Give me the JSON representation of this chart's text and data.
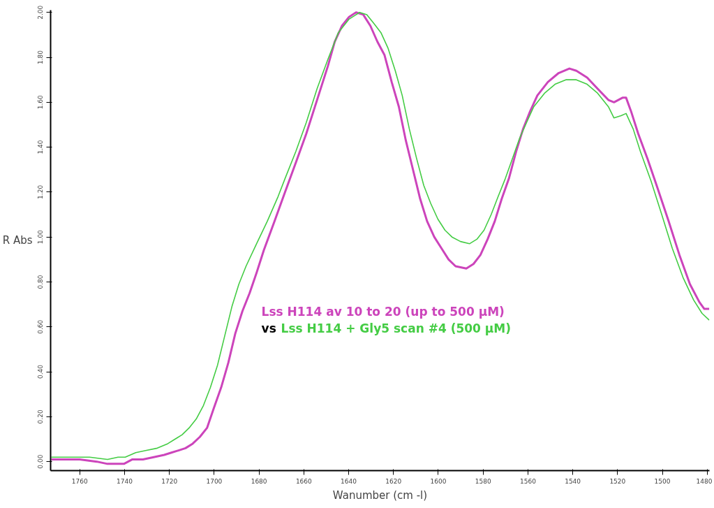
{
  "chart_data": {
    "type": "line",
    "xlabel": "Wanumber (cm -l)",
    "ylabel": "R Abs",
    "xlim": [
      1773,
      1479
    ],
    "ylim": [
      -0.04,
      2.01
    ],
    "xticks": [
      1760,
      1740,
      1720,
      1700,
      1680,
      1660,
      1640,
      1620,
      1600,
      1580,
      1560,
      1540,
      1520,
      1500,
      1480
    ],
    "yticks": [
      {
        "value": 0,
        "label": "0.00"
      },
      {
        "value": 0.2,
        "label": "0.20"
      },
      {
        "value": 0.4,
        "label": "0.40"
      },
      {
        "value": 0.6,
        "label": "0.60"
      },
      {
        "value": 0.8,
        "label": "0.80"
      },
      {
        "value": 1.0,
        "label": "1.00"
      },
      {
        "value": 1.2,
        "label": "1.20"
      },
      {
        "value": 1.4,
        "label": "1.40"
      },
      {
        "value": 1.6,
        "label": "1.60"
      },
      {
        "value": 1.8,
        "label": "1.80"
      },
      {
        "value": 2.0,
        "label": "2.00"
      }
    ],
    "grid": false,
    "legend": "bottom",
    "annotations": [
      "vs"
    ],
    "series": [
      {
        "name": "Lss H114 av 10 to 20 (up to 500 µM)",
        "color": "#cc44bb",
        "x": [
          1772.7,
          1768.2,
          1760,
          1752.4,
          1747.6,
          1742.9,
          1740.3,
          1736.5,
          1731.8,
          1727,
          1722.3,
          1719.1,
          1715.9,
          1712.8,
          1709.6,
          1706.4,
          1703.2,
          1700.1,
          1696.9,
          1693.7,
          1690.6,
          1687.4,
          1684.2,
          1681.1,
          1677.9,
          1673.1,
          1668.4,
          1663.6,
          1658.9,
          1654.1,
          1649.3,
          1646.2,
          1643,
          1639.8,
          1636.7,
          1633.5,
          1630.3,
          1627.2,
          1624,
          1620.8,
          1617.6,
          1614.5,
          1611.3,
          1608.1,
          1605,
          1601.8,
          1598.6,
          1595.4,
          1592.3,
          1587.5,
          1584.3,
          1581.2,
          1578,
          1574.8,
          1571.7,
          1568.5,
          1565.3,
          1562.2,
          1559,
          1555.8,
          1551.1,
          1546.3,
          1541.5,
          1538.4,
          1533.6,
          1528.9,
          1524.1,
          1521.6,
          1517.8,
          1516.2,
          1514,
          1510.8,
          1506.7,
          1501.9,
          1497.2,
          1492.4,
          1487.7,
          1483.5,
          1481.3,
          1479.1
        ],
        "values": [
          0.01,
          0.01,
          0.01,
          0,
          -0.01,
          -0.01,
          -0.01,
          0.01,
          0.01,
          0.02,
          0.03,
          0.04,
          0.05,
          0.06,
          0.08,
          0.11,
          0.15,
          0.24,
          0.33,
          0.44,
          0.57,
          0.67,
          0.75,
          0.84,
          0.94,
          1.07,
          1.2,
          1.33,
          1.46,
          1.61,
          1.76,
          1.87,
          1.94,
          1.98,
          2.0,
          1.99,
          1.94,
          1.87,
          1.81,
          1.69,
          1.58,
          1.43,
          1.3,
          1.17,
          1.07,
          1.0,
          0.95,
          0.9,
          0.87,
          0.86,
          0.88,
          0.92,
          0.99,
          1.07,
          1.17,
          1.26,
          1.38,
          1.48,
          1.56,
          1.63,
          1.69,
          1.73,
          1.75,
          1.74,
          1.71,
          1.66,
          1.61,
          1.6,
          1.62,
          1.62,
          1.56,
          1.46,
          1.35,
          1.21,
          1.07,
          0.92,
          0.79,
          0.71,
          0.68,
          0.68
        ]
      },
      {
        "name": "Lss H114 + Gly5 scan #4 (500 µM)",
        "color": "#44cc44",
        "x": [
          1772.7,
          1768.2,
          1761.9,
          1755.6,
          1747.6,
          1742.9,
          1739.7,
          1735,
          1730.2,
          1725.4,
          1720.7,
          1717.5,
          1714.3,
          1711.2,
          1708,
          1704.8,
          1701.7,
          1698.5,
          1695.3,
          1692.1,
          1689,
          1685.8,
          1681.1,
          1676.3,
          1671.5,
          1668.4,
          1663.6,
          1658.9,
          1654.1,
          1649.3,
          1644.6,
          1639.8,
          1635.1,
          1631.9,
          1628.7,
          1625.6,
          1622.4,
          1619.2,
          1616.1,
          1612.9,
          1609.7,
          1606.5,
          1603.4,
          1600.2,
          1597,
          1593.9,
          1590.1,
          1586.1,
          1582.8,
          1579.6,
          1576.4,
          1573.3,
          1570.1,
          1566.9,
          1563.7,
          1560.6,
          1557.4,
          1552.6,
          1547.9,
          1543.1,
          1538.4,
          1533.6,
          1528.9,
          1524.1,
          1521.6,
          1518.4,
          1516.2,
          1513,
          1509.8,
          1505.1,
          1500.3,
          1495.6,
          1490.8,
          1486.1,
          1482.3,
          1479.1
        ],
        "values": [
          0.02,
          0.02,
          0.02,
          0.02,
          0.01,
          0.02,
          0.02,
          0.04,
          0.05,
          0.06,
          0.08,
          0.1,
          0.12,
          0.15,
          0.19,
          0.25,
          0.33,
          0.43,
          0.56,
          0.69,
          0.79,
          0.87,
          0.97,
          1.07,
          1.18,
          1.26,
          1.38,
          1.51,
          1.66,
          1.79,
          1.91,
          1.97,
          2.0,
          1.99,
          1.95,
          1.91,
          1.84,
          1.74,
          1.63,
          1.48,
          1.35,
          1.23,
          1.15,
          1.08,
          1.03,
          1.0,
          0.98,
          0.97,
          0.99,
          1.03,
          1.1,
          1.18,
          1.26,
          1.35,
          1.44,
          1.51,
          1.58,
          1.64,
          1.68,
          1.7,
          1.7,
          1.68,
          1.64,
          1.58,
          1.53,
          1.54,
          1.55,
          1.48,
          1.38,
          1.25,
          1.1,
          0.95,
          0.82,
          0.72,
          0.66,
          0.63
        ]
      }
    ]
  }
}
